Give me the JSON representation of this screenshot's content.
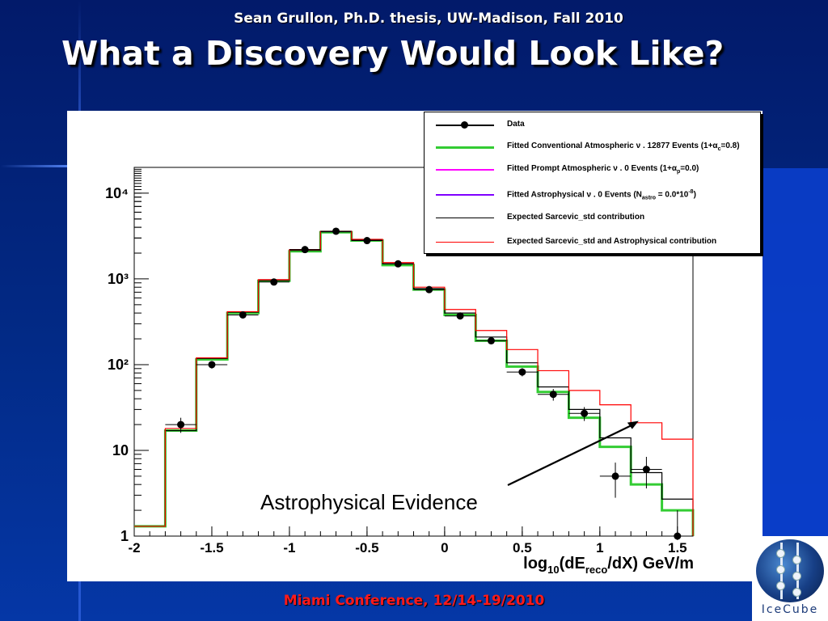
{
  "slide": {
    "subtitle": "Sean Grullon, Ph.D. thesis, UW-Madison, Fall 2010",
    "title": "What a Discovery Would Look Like?",
    "footer": "Miami Conference, 12/14-19/2010",
    "annotation": "Astrophysical Evidence",
    "logo_text": "IceCube",
    "colors": {
      "background": "#022a86",
      "title_text": "#ffffff",
      "footer_text": "#ff1a1a",
      "conventional": "#33cc33",
      "prompt": "#ff00ff",
      "astrophysical": "#8000ff",
      "sarcevic": "#000000",
      "sarcevic_astro": "#ff0000"
    }
  },
  "chart_data": {
    "type": "step-histogram",
    "xlabel_parts": [
      "log",
      "10",
      "(dE",
      "reco",
      "/dX) GeV/m"
    ],
    "xlim": [
      -2,
      1.6
    ],
    "ylim": [
      1,
      20000
    ],
    "yscale": "log",
    "grid": false,
    "legend_position": "top-right",
    "x_ticks": [
      "-2",
      "-1.5",
      "-1",
      "-0.5",
      "0",
      "0.5",
      "1",
      "1.5"
    ],
    "y_ticks": [
      "1",
      "10",
      "10²",
      "10³",
      "10⁴"
    ],
    "bin_edges": [
      -2.0,
      -1.8,
      -1.6,
      -1.4,
      -1.2,
      -1.0,
      -0.8,
      -0.6,
      -0.4,
      -0.2,
      0.0,
      0.2,
      0.4,
      0.6,
      0.8,
      1.0,
      1.2,
      1.4,
      1.6
    ],
    "data_points": {
      "x": [
        -1.7,
        -1.5,
        -1.3,
        -1.1,
        -0.9,
        -0.7,
        -0.5,
        -0.3,
        -0.1,
        0.1,
        0.3,
        0.5,
        0.7,
        0.9,
        1.1,
        1.3,
        1.5
      ],
      "y": [
        20,
        100,
        380,
        920,
        2200,
        3600,
        2800,
        1500,
        750,
        370,
        190,
        82,
        45,
        27,
        5,
        6,
        1
      ],
      "yerr": [
        4,
        10,
        20,
        30,
        47,
        60,
        53,
        39,
        27,
        19,
        14,
        9,
        7,
        5,
        2.2,
        2.4,
        1
      ]
    },
    "series": [
      {
        "name": "Fitted Conventional Atmospheric ν . 12877 Events (1+α_c=0.8)",
        "values": [
          1.3,
          17,
          115,
          400,
          950,
          2100,
          3500,
          2800,
          1450,
          750,
          380,
          190,
          95,
          48,
          24,
          11,
          4,
          2
        ]
      },
      {
        "name": "Fitted Prompt Atmospheric ν . 0 Events (1+α_p=0.0)",
        "values": [
          0,
          0,
          0,
          0,
          0,
          0,
          0,
          0,
          0,
          0,
          0,
          0,
          0,
          0,
          0,
          0,
          0,
          0
        ]
      },
      {
        "name": "Fitted Astrophysical ν .  0 Events (N_astro = 0.0*10^-8)",
        "values": [
          0,
          0,
          0,
          0,
          0,
          0,
          0,
          0,
          0,
          0,
          0,
          0,
          0,
          0,
          0,
          0,
          0,
          0
        ]
      },
      {
        "name": "Expected Sarcevic_std contribution",
        "values": [
          1.3,
          17,
          118,
          410,
          960,
          2150,
          3550,
          2850,
          1500,
          770,
          400,
          210,
          105,
          55,
          30,
          14,
          5.5,
          2.7
        ]
      },
      {
        "name": "Expected Sarcevic_std and Astrophysical contribution",
        "values": [
          1.3,
          18,
          120,
          415,
          980,
          2200,
          3600,
          2900,
          1550,
          800,
          440,
          250,
          150,
          85,
          50,
          34,
          21,
          13.5
        ]
      }
    ],
    "legend": [
      {
        "label": "Data",
        "style": "marker"
      },
      {
        "label": "Fitted Conventional Atmospheric ν . 12877 Events (1+α_c=0.8)",
        "style": "line",
        "color": "#33cc33"
      },
      {
        "label": "Fitted Prompt Atmospheric ν . 0 Events (1+α_p=0.0)",
        "style": "line",
        "color": "#ff00ff"
      },
      {
        "label": "Fitted Astrophysical ν .  0 Events (N_astro = 0.0*10^-8)",
        "style": "line",
        "color": "#8000ff"
      },
      {
        "label": "Expected Sarcevic_std contribution",
        "style": "line",
        "color": "#000000"
      },
      {
        "label": "Expected Sarcevic_std and Astrophysical contribution",
        "style": "line",
        "color": "#ff0000"
      }
    ],
    "annotation_arrow": {
      "text": "Astrophysical Evidence",
      "points_to": [
        1.25,
        22
      ]
    }
  }
}
